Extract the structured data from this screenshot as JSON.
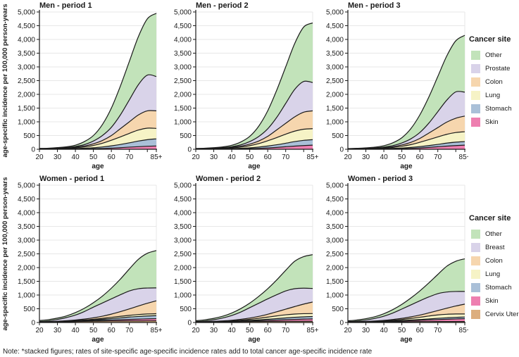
{
  "note": "Note: *stacked figures; rates of site-specific age-specific incidence rates add to total cancer age-specific incidence rate",
  "axes": {
    "y_label": "age-specific incidence per 100,000 person-years",
    "x_label": "age",
    "ylim": [
      0,
      5000
    ],
    "ytick_step": 500,
    "xticks": [
      20,
      30,
      40,
      50,
      60,
      70,
      80,
      85
    ],
    "xtick_labels": [
      "20",
      "30",
      "40",
      "50",
      "60",
      "70",
      "",
      "85+"
    ]
  },
  "colors": {
    "Other": "#c2e3ba",
    "Prostate": "#d9d3e9",
    "Breast": "#d9d3e9",
    "Colon": "#f6d6ae",
    "Lung": "#f6f3c6",
    "Stomach": "#aac0d8",
    "Skin": "#ee7fb0",
    "Cervix Uteri": "#dcae7e",
    "stroke": "#1a1a1a",
    "grid": "#e7e7e7"
  },
  "legends": {
    "men": {
      "title": "Cancer site",
      "items": [
        "Other",
        "Prostate",
        "Colon",
        "Lung",
        "Stomach",
        "Skin"
      ]
    },
    "women": {
      "title": "Cancer site",
      "items": [
        "Other",
        "Breast",
        "Colon",
        "Lung",
        "Stomach",
        "Skin",
        "Cervix Uteri"
      ]
    }
  },
  "chart_data": [
    {
      "title": "Men - period 1",
      "type": "area",
      "stacked": true,
      "series_order": "bottom-to-top",
      "x": [
        20,
        25,
        30,
        35,
        40,
        45,
        50,
        55,
        60,
        65,
        70,
        75,
        80,
        85
      ],
      "series": [
        {
          "name": "Skin",
          "values": [
            3,
            4,
            5,
            7,
            10,
            14,
            20,
            30,
            42,
            58,
            78,
            95,
            110,
            120
          ]
        },
        {
          "name": "Stomach",
          "values": [
            5,
            6,
            8,
            11,
            15,
            24,
            35,
            55,
            83,
            117,
            157,
            205,
            240,
            260
          ]
        },
        {
          "name": "Lung",
          "values": [
            7,
            10,
            12,
            17,
            30,
            47,
            85,
            135,
            205,
            275,
            345,
            400,
            420,
            380
          ]
        },
        {
          "name": "Colon",
          "values": [
            5,
            5,
            10,
            15,
            20,
            35,
            60,
            100,
            170,
            300,
            420,
            550,
            630,
            640
          ]
        },
        {
          "name": "Prostate",
          "values": [
            5,
            5,
            10,
            15,
            25,
            50,
            100,
            180,
            300,
            500,
            800,
            1100,
            1300,
            1250
          ]
        },
        {
          "name": "Other",
          "values": [
            5,
            10,
            15,
            25,
            50,
            110,
            200,
            400,
            700,
            1050,
            1400,
            1750,
            2050,
            2300
          ]
        }
      ]
    },
    {
      "title": "Men - period 2",
      "type": "area",
      "stacked": true,
      "series_order": "bottom-to-top",
      "x": [
        20,
        25,
        30,
        35,
        40,
        45,
        50,
        55,
        60,
        65,
        70,
        75,
        80,
        85
      ],
      "series": [
        {
          "name": "Skin",
          "values": [
            3,
            4,
            5,
            7,
            10,
            15,
            22,
            33,
            48,
            68,
            92,
            115,
            135,
            150
          ]
        },
        {
          "name": "Stomach",
          "values": [
            5,
            6,
            8,
            10,
            14,
            21,
            30,
            47,
            70,
            97,
            128,
            165,
            190,
            200
          ]
        },
        {
          "name": "Lung",
          "values": [
            6,
            9,
            11,
            16,
            28,
            44,
            80,
            127,
            192,
            260,
            330,
            380,
            405,
            400
          ]
        },
        {
          "name": "Colon",
          "values": [
            5,
            5,
            9,
            14,
            19,
            33,
            56,
            93,
            160,
            280,
            395,
            520,
            620,
            650
          ]
        },
        {
          "name": "Prostate",
          "values": [
            5,
            5,
            10,
            15,
            24,
            47,
            92,
            165,
            275,
            455,
            725,
            1000,
            1120,
            1030
          ]
        },
        {
          "name": "Other",
          "values": [
            5,
            10,
            15,
            25,
            50,
            105,
            190,
            375,
            655,
            990,
            1330,
            1670,
            1980,
            2170
          ]
        }
      ]
    },
    {
      "title": "Men - period 3",
      "type": "area",
      "stacked": true,
      "series_order": "bottom-to-top",
      "x": [
        20,
        25,
        30,
        35,
        40,
        45,
        50,
        55,
        60,
        65,
        70,
        75,
        80,
        85
      ],
      "series": [
        {
          "name": "Skin",
          "values": [
            3,
            4,
            5,
            7,
            10,
            15,
            22,
            33,
            48,
            68,
            92,
            115,
            135,
            150
          ]
        },
        {
          "name": "Stomach",
          "values": [
            4,
            5,
            7,
            9,
            12,
            17,
            24,
            35,
            50,
            67,
            86,
            110,
            125,
            130
          ]
        },
        {
          "name": "Lung",
          "values": [
            5,
            7,
            9,
            12,
            22,
            36,
            64,
            102,
            157,
            215,
            272,
            320,
            350,
            360
          ]
        },
        {
          "name": "Colon",
          "values": [
            4,
            5,
            7,
            12,
            16,
            27,
            48,
            82,
            140,
            240,
            340,
            445,
            520,
            570
          ]
        },
        {
          "name": "Prostate",
          "values": [
            5,
            5,
            9,
            13,
            20,
            38,
            72,
            128,
            215,
            360,
            580,
            800,
            960,
            870
          ]
        },
        {
          "name": "Other",
          "values": [
            5,
            9,
            15,
            25,
            50,
            102,
            190,
            370,
            640,
            950,
            1280,
            1610,
            1860,
            2070
          ]
        }
      ]
    },
    {
      "title": "Women - period 1",
      "type": "area",
      "stacked": true,
      "series_order": "bottom-to-top",
      "x": [
        20,
        25,
        30,
        35,
        40,
        45,
        50,
        55,
        60,
        65,
        70,
        75,
        80,
        85
      ],
      "series": [
        {
          "name": "Cervix Uteri",
          "values": [
            8,
            12,
            18,
            25,
            33,
            40,
            46,
            50,
            53,
            55,
            57,
            58,
            59,
            60
          ]
        },
        {
          "name": "Skin",
          "values": [
            4,
            5,
            6,
            8,
            11,
            15,
            20,
            27,
            35,
            45,
            55,
            64,
            73,
            80
          ]
        },
        {
          "name": "Stomach",
          "values": [
            3,
            4,
            6,
            9,
            13,
            19,
            27,
            38,
            52,
            68,
            86,
            98,
            106,
            110
          ]
        },
        {
          "name": "Lung",
          "values": [
            3,
            4,
            6,
            8,
            11,
            16,
            24,
            35,
            48,
            57,
            62,
            70,
            72,
            70
          ]
        },
        {
          "name": "Colon",
          "values": [
            4,
            6,
            9,
            14,
            22,
            35,
            53,
            80,
            117,
            170,
            235,
            310,
            390,
            470
          ]
        },
        {
          "name": "Breast",
          "values": [
            13,
            29,
            65,
            116,
            180,
            275,
            390,
            480,
            555,
            615,
            655,
            630,
            555,
            470
          ]
        },
        {
          "name": "Other",
          "values": [
            35,
            45,
            50,
            60,
            90,
            120,
            160,
            250,
            390,
            570,
            800,
            1070,
            1265,
            1360
          ]
        }
      ]
    },
    {
      "title": "Women - period 2",
      "type": "area",
      "stacked": true,
      "series_order": "bottom-to-top",
      "x": [
        20,
        25,
        30,
        35,
        40,
        45,
        50,
        55,
        60,
        65,
        70,
        75,
        80,
        85
      ],
      "series": [
        {
          "name": "Cervix Uteri",
          "values": [
            7,
            10,
            14,
            19,
            25,
            30,
            35,
            38,
            40,
            42,
            43,
            44,
            45,
            45
          ]
        },
        {
          "name": "Skin",
          "values": [
            4,
            5,
            7,
            10,
            13,
            18,
            23,
            30,
            39,
            49,
            60,
            70,
            79,
            87
          ]
        },
        {
          "name": "Stomach",
          "values": [
            3,
            4,
            5,
            7,
            10,
            14,
            20,
            29,
            39,
            51,
            64,
            76,
            82,
            86
          ]
        },
        {
          "name": "Lung",
          "values": [
            3,
            4,
            6,
            9,
            14,
            23,
            37,
            55,
            77,
            98,
            113,
            118,
            116,
            107
          ]
        },
        {
          "name": "Colon",
          "values": [
            4,
            6,
            9,
            13,
            20,
            32,
            47,
            70,
            105,
            150,
            205,
            272,
            348,
            420
          ]
        },
        {
          "name": "Breast",
          "values": [
            12,
            27,
            59,
            107,
            173,
            263,
            378,
            478,
            560,
            620,
            665,
            650,
            580,
            495
          ]
        },
        {
          "name": "Other",
          "values": [
            32,
            42,
            50,
            63,
            90,
            125,
            165,
            250,
            370,
            540,
            750,
            1000,
            1150,
            1230
          ]
        }
      ]
    },
    {
      "title": "Women - period 3",
      "type": "area",
      "stacked": true,
      "series_order": "bottom-to-top",
      "x": [
        20,
        25,
        30,
        35,
        40,
        45,
        50,
        55,
        60,
        65,
        70,
        75,
        80,
        85
      ],
      "series": [
        {
          "name": "Cervix Uteri",
          "values": [
            6,
            9,
            12,
            16,
            21,
            25,
            28,
            31,
            33,
            34,
            35,
            35,
            35,
            35
          ]
        },
        {
          "name": "Skin",
          "values": [
            4,
            5,
            8,
            12,
            16,
            22,
            30,
            38,
            48,
            60,
            72,
            84,
            95,
            105
          ]
        },
        {
          "name": "Stomach",
          "values": [
            3,
            4,
            5,
            6,
            8,
            11,
            15,
            21,
            28,
            36,
            45,
            53,
            58,
            60
          ]
        },
        {
          "name": "Lung",
          "values": [
            3,
            4,
            6,
            9,
            14,
            23,
            37,
            57,
            81,
            105,
            123,
            128,
            122,
            110
          ]
        },
        {
          "name": "Colon",
          "values": [
            4,
            6,
            8,
            12,
            18,
            28,
            40,
            58,
            80,
            115,
            160,
            220,
            290,
            360
          ]
        },
        {
          "name": "Breast",
          "values": [
            12,
            25,
            53,
            95,
            153,
            236,
            340,
            435,
            520,
            580,
            615,
            590,
            530,
            460
          ]
        },
        {
          "name": "Other",
          "values": [
            30,
            39,
            48,
            60,
            90,
            125,
            170,
            250,
            360,
            510,
            700,
            940,
            1100,
            1190
          ]
        }
      ]
    }
  ]
}
